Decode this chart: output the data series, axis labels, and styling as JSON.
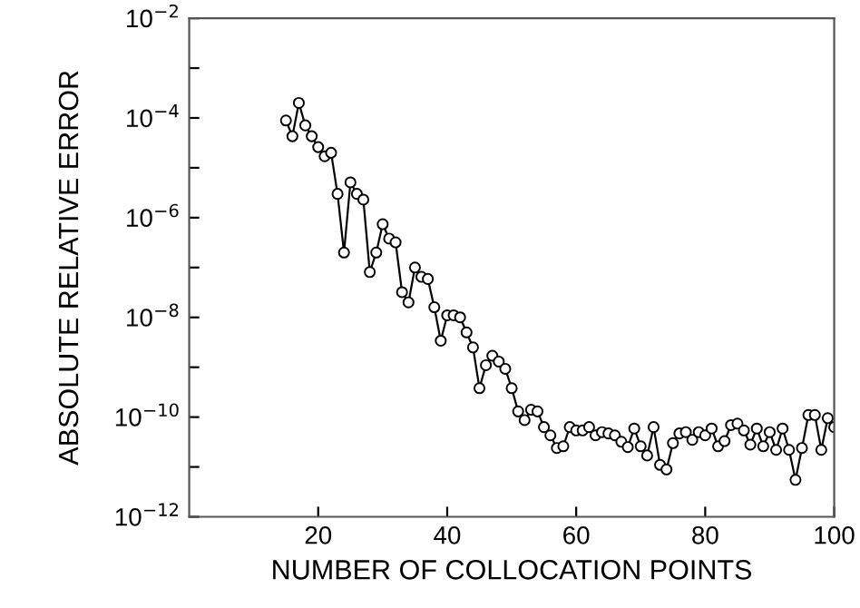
{
  "chart_data": {
    "type": "line",
    "xlabel": "NUMBER OF COLLOCATION POINTS",
    "ylabel": "ABSOLUTE RELATIVE ERROR",
    "log": "y",
    "xlim": [
      0,
      100
    ],
    "xticks": [
      20,
      40,
      60,
      80,
      100
    ],
    "ylim": [
      1e-12,
      0.01
    ],
    "yticks": [
      {
        "value": 1e-12,
        "label": "10$^{−12}$"
      },
      {
        "value": 1e-11,
        "label": null
      },
      {
        "value": 1e-10,
        "label": "10$^{−10}$"
      },
      {
        "value": 1e-09,
        "label": null
      },
      {
        "value": 1e-08,
        "label": "10$^{−8}$"
      },
      {
        "value": 1e-07,
        "label": null
      },
      {
        "value": 1e-06,
        "label": "10$^{−6}$"
      },
      {
        "value": 1e-05,
        "label": null
      },
      {
        "value": 0.0001,
        "label": "10$^{−4}$"
      },
      {
        "value": 0.001,
        "label": null
      },
      {
        "value": 0.01,
        "label": "10$^{−2}$"
      }
    ],
    "grid": false,
    "marker": "circle",
    "line_style": "solid",
    "x": [
      15,
      16,
      17,
      18,
      19,
      20,
      21,
      22,
      23,
      24,
      25,
      26,
      27,
      28,
      29,
      30,
      31,
      32,
      33,
      34,
      35,
      36,
      37,
      38,
      39,
      40,
      41,
      42,
      43,
      44,
      45,
      46,
      47,
      48,
      49,
      50,
      51,
      52,
      53,
      54,
      55,
      56,
      57,
      58,
      59,
      60,
      61,
      62,
      63,
      64,
      65,
      66,
      67,
      68,
      69,
      70,
      71,
      72,
      73,
      74,
      75,
      76,
      77,
      78,
      79,
      80,
      81,
      82,
      83,
      84,
      85,
      86,
      87,
      88,
      89,
      90,
      91,
      92,
      93,
      94,
      95,
      96,
      97,
      98,
      99,
      100
    ],
    "series": [
      {
        "color": "#000000",
        "values": [
          8.9e-05,
          4.3e-05,
          0.0002,
          7.1e-05,
          4.3e-05,
          2.6e-05,
          1.7e-05,
          2e-05,
          3e-06,
          2e-07,
          5.1e-06,
          3e-06,
          2.3e-06,
          8.1e-08,
          2e-07,
          7.4e-07,
          3.8e-07,
          3.2e-07,
          3.2e-08,
          2e-08,
          1e-07,
          6.5e-08,
          5.9e-08,
          1.6e-08,
          3.4e-09,
          1.1e-08,
          1.1e-08,
          1e-08,
          5e-09,
          2.5e-09,
          3.8e-10,
          1.1e-09,
          1.7e-09,
          1.3e-09,
          9.3e-10,
          3.8e-10,
          1.3e-10,
          8.7e-11,
          1.4e-10,
          1.3e-10,
          6.3e-11,
          4.3e-11,
          2.4e-11,
          2.6e-11,
          6.3e-11,
          5.4e-11,
          5.4e-11,
          6.3e-11,
          4.3e-11,
          5e-11,
          4.7e-11,
          4.3e-11,
          3.2e-11,
          2.5e-11,
          5.9e-11,
          2.6e-11,
          1.7e-11,
          6.3e-11,
          1.1e-11,
          8.9e-12,
          3e-11,
          4.7e-11,
          5e-11,
          3.5e-11,
          5e-11,
          4.3e-11,
          5.9e-11,
          2.6e-11,
          3.3e-11,
          6.9e-11,
          7.4e-11,
          5.4e-11,
          2.8e-11,
          5.9e-11,
          2.6e-11,
          5e-11,
          2.2e-11,
          5.9e-11,
          2.2e-11,
          5.5e-12,
          2.4e-11,
          1.1e-10,
          1.1e-10,
          2.2e-11,
          9.5e-11,
          6.3e-11
        ]
      }
    ]
  }
}
